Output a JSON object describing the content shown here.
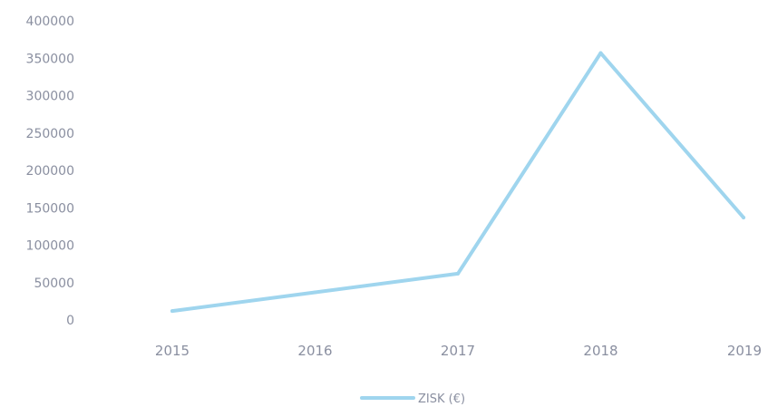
{
  "chart_data": {
    "type": "line",
    "title": "",
    "xlabel": "",
    "ylabel": "",
    "categories": [
      "2015",
      "2016",
      "2017",
      "2018",
      "2019"
    ],
    "series": [
      {
        "name": "ZISK (€)",
        "values": [
          12000,
          37000,
          62000,
          357000,
          137000
        ],
        "color": "#9fd5ee"
      }
    ],
    "ylim": [
      0,
      400000
    ],
    "y_ticks": [
      "0",
      "50000",
      "100000",
      "150000",
      "200000",
      "250000",
      "300000",
      "350000",
      "400000"
    ],
    "grid": false,
    "legend_position": "bottom-center"
  }
}
